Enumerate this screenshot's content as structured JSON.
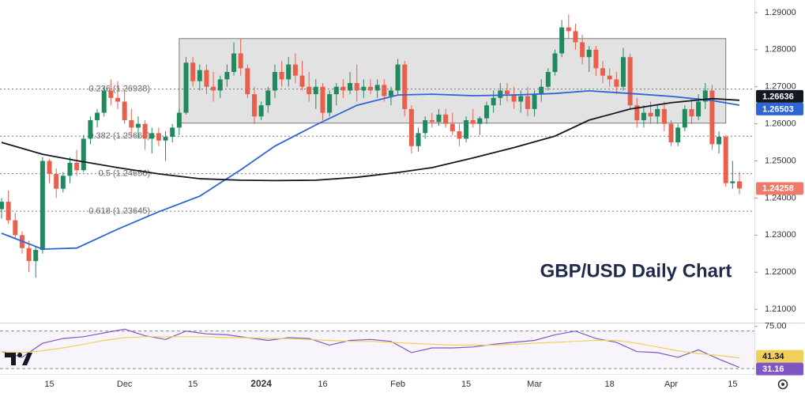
{
  "chart_data": [
    {
      "type": "candlestick",
      "title": "GBP/USD Daily Chart",
      "categories": [
        null,
        null,
        null,
        null,
        null,
        null,
        null,
        "15",
        null,
        null,
        null,
        null,
        null,
        null,
        null,
        null,
        null,
        null,
        "Dec",
        null,
        null,
        null,
        null,
        null,
        null,
        null,
        null,
        null,
        "15",
        null,
        null,
        null,
        null,
        null,
        null,
        null,
        null,
        null,
        "2024",
        null,
        null,
        null,
        null,
        null,
        null,
        null,
        null,
        "16",
        null,
        null,
        null,
        null,
        null,
        null,
        null,
        null,
        null,
        null,
        "Feb",
        null,
        null,
        null,
        null,
        null,
        null,
        null,
        null,
        null,
        "15",
        null,
        null,
        null,
        null,
        null,
        null,
        null,
        null,
        null,
        "Mar",
        null,
        null,
        null,
        null,
        null,
        null,
        null,
        null,
        null,
        null,
        "18",
        null,
        null,
        null,
        null,
        null,
        null,
        null,
        null,
        "Apr",
        null,
        null,
        null,
        null,
        null,
        null,
        null,
        null,
        "15",
        null
      ],
      "open": [
        1.237,
        1.239,
        1.234,
        1.23,
        1.2265,
        1.223,
        1.226,
        1.25,
        1.2465,
        1.2425,
        1.246,
        1.2495,
        1.2475,
        1.256,
        1.261,
        1.263,
        1.269,
        1.267,
        1.266,
        1.261,
        1.259,
        1.26,
        1.256,
        1.2575,
        1.2555,
        1.2565,
        1.259,
        1.263,
        1.2765,
        1.2715,
        1.2745,
        1.27,
        1.269,
        1.272,
        1.274,
        1.279,
        1.275,
        1.268,
        1.262,
        1.265,
        1.269,
        1.274,
        1.272,
        1.276,
        1.273,
        1.27,
        1.268,
        1.27,
        1.263,
        1.268,
        1.27,
        1.269,
        1.271,
        1.269,
        1.27,
        1.269,
        1.2705,
        1.2675,
        1.269,
        1.276,
        1.264,
        1.254,
        1.2575,
        1.261,
        1.2605,
        1.2625,
        1.26,
        1.258,
        1.256,
        1.261,
        1.26,
        1.2615,
        1.265,
        1.267,
        1.269,
        1.268,
        1.266,
        1.2675,
        1.264,
        1.268,
        1.27,
        1.274,
        1.279,
        1.286,
        1.285,
        1.282,
        1.278,
        1.28,
        1.275,
        1.273,
        1.272,
        1.27,
        1.278,
        1.265,
        1.261,
        1.263,
        1.262,
        1.264,
        1.26,
        1.255,
        1.259,
        1.264,
        1.262,
        1.266,
        1.269,
        1.2545,
        1.2565,
        1.244,
        1.2445
      ],
      "high": [
        1.24,
        1.242,
        1.236,
        1.231,
        1.2285,
        1.227,
        1.251,
        1.2505,
        1.248,
        1.247,
        1.251,
        1.253,
        1.257,
        1.262,
        1.264,
        1.27,
        1.272,
        1.2715,
        1.269,
        1.264,
        1.262,
        1.261,
        1.259,
        1.259,
        1.258,
        1.26,
        1.264,
        1.278,
        1.278,
        1.276,
        1.276,
        1.274,
        1.273,
        1.276,
        1.282,
        1.283,
        1.276,
        1.27,
        1.266,
        1.27,
        1.276,
        1.277,
        1.278,
        1.279,
        1.277,
        1.274,
        1.272,
        1.271,
        1.269,
        1.271,
        1.272,
        1.274,
        1.276,
        1.272,
        1.272,
        1.272,
        1.272,
        1.27,
        1.2775,
        1.277,
        1.265,
        1.259,
        1.262,
        1.263,
        1.264,
        1.264,
        1.263,
        1.26,
        1.262,
        1.264,
        1.262,
        1.266,
        1.269,
        1.271,
        1.271,
        1.27,
        1.269,
        1.27,
        1.269,
        1.272,
        1.275,
        1.28,
        1.288,
        1.2895,
        1.287,
        1.284,
        1.281,
        1.281,
        1.277,
        1.275,
        1.274,
        1.2805,
        1.279,
        1.267,
        1.265,
        1.266,
        1.265,
        1.266,
        1.261,
        1.26,
        1.265,
        1.267,
        1.268,
        1.271,
        1.2705,
        1.258,
        1.257,
        1.25,
        1.247
      ],
      "low": [
        1.2345,
        1.233,
        1.229,
        1.225,
        1.22,
        1.2185,
        1.225,
        1.244,
        1.24,
        1.2415,
        1.244,
        1.246,
        1.247,
        1.2545,
        1.259,
        1.262,
        1.265,
        1.264,
        1.26,
        1.257,
        1.256,
        1.253,
        1.252,
        1.254,
        1.25,
        1.255,
        1.257,
        1.2625,
        1.27,
        1.269,
        1.268,
        1.266,
        1.267,
        1.27,
        1.273,
        1.273,
        1.267,
        1.26,
        1.261,
        1.263,
        1.267,
        1.27,
        1.27,
        1.271,
        1.269,
        1.266,
        1.264,
        1.261,
        1.262,
        1.265,
        1.267,
        1.268,
        1.266,
        1.267,
        1.268,
        1.267,
        1.266,
        1.265,
        1.268,
        1.262,
        1.252,
        1.2525,
        1.256,
        1.259,
        1.2595,
        1.259,
        1.257,
        1.254,
        1.255,
        1.259,
        1.257,
        1.26,
        1.263,
        1.265,
        1.266,
        1.264,
        1.263,
        1.262,
        1.262,
        1.266,
        1.269,
        1.273,
        1.278,
        1.283,
        1.28,
        1.276,
        1.274,
        1.273,
        1.271,
        1.27,
        1.268,
        1.269,
        1.264,
        1.259,
        1.259,
        1.26,
        1.26,
        1.258,
        1.254,
        1.254,
        1.258,
        1.26,
        1.261,
        1.264,
        1.253,
        1.252,
        1.243,
        1.2425,
        1.241
      ],
      "close": [
        1.239,
        1.234,
        1.23,
        1.2265,
        1.223,
        1.226,
        1.25,
        1.2465,
        1.2425,
        1.246,
        1.2495,
        1.2475,
        1.256,
        1.261,
        1.263,
        1.269,
        1.267,
        1.266,
        1.261,
        1.259,
        1.26,
        1.256,
        1.2575,
        1.2555,
        1.2565,
        1.259,
        1.263,
        1.2765,
        1.2715,
        1.2745,
        1.27,
        1.269,
        1.272,
        1.274,
        1.279,
        1.275,
        1.268,
        1.262,
        1.265,
        1.269,
        1.274,
        1.272,
        1.276,
        1.273,
        1.27,
        1.268,
        1.27,
        1.263,
        1.268,
        1.27,
        1.269,
        1.271,
        1.269,
        1.27,
        1.269,
        1.2705,
        1.2675,
        1.269,
        1.276,
        1.264,
        1.254,
        1.2575,
        1.261,
        1.2605,
        1.2625,
        1.26,
        1.258,
        1.256,
        1.261,
        1.26,
        1.2615,
        1.265,
        1.267,
        1.269,
        1.268,
        1.266,
        1.2675,
        1.264,
        1.268,
        1.27,
        1.274,
        1.279,
        1.286,
        1.285,
        1.282,
        1.278,
        1.28,
        1.275,
        1.273,
        1.272,
        1.27,
        1.278,
        1.265,
        1.261,
        1.263,
        1.262,
        1.264,
        1.26,
        1.255,
        1.259,
        1.264,
        1.262,
        1.266,
        1.269,
        1.2545,
        1.2565,
        1.244,
        1.2445,
        1.24258
      ],
      "up_color": "#1f8a5e",
      "down_color": "#e8604c",
      "ylim": [
        1.2064,
        1.2934
      ],
      "yticks": [
        {
          "value": 1.21,
          "label": "1.21000"
        },
        {
          "value": 1.22,
          "label": "1.22000"
        },
        {
          "value": 1.23,
          "label": "1.23000"
        },
        {
          "value": 1.24,
          "label": "1.24000"
        },
        {
          "value": 1.25,
          "label": "1.25000"
        },
        {
          "value": 1.26,
          "label": "1.26000"
        },
        {
          "value": 1.27,
          "label": "1.27000"
        },
        {
          "value": 1.28,
          "label": "1.28000"
        },
        {
          "value": 1.29,
          "label": "1.29000"
        }
      ],
      "moving_averages": [
        {
          "color": "#2f64d6",
          "x": [
            0,
            6,
            11,
            17,
            23,
            29,
            35,
            40,
            46,
            52,
            58,
            63,
            69,
            75,
            81,
            86,
            92,
            98,
            104,
            108
          ],
          "values": [
            1.2305,
            1.2262,
            1.2265,
            1.2316,
            1.2363,
            1.2405,
            1.2476,
            1.254,
            1.2597,
            1.265,
            1.2678,
            1.268,
            1.2676,
            1.2678,
            1.2682,
            1.2689,
            1.2682,
            1.2674,
            1.2663,
            1.26503
          ]
        },
        {
          "color": "#131722",
          "x": [
            0,
            6,
            11,
            17,
            23,
            29,
            35,
            40,
            46,
            52,
            58,
            63,
            69,
            75,
            81,
            86,
            92,
            98,
            104,
            108
          ],
          "values": [
            1.255,
            1.2518,
            1.2501,
            1.2482,
            1.2465,
            1.2452,
            1.2448,
            1.2447,
            1.2448,
            1.2456,
            1.2469,
            1.2482,
            1.2508,
            1.2536,
            1.2567,
            1.261,
            1.264,
            1.2657,
            1.2668,
            1.26636
          ]
        }
      ],
      "fibonacci": [
        {
          "value": 1.26938,
          "label": "0.236 (1.26938)"
        },
        {
          "value": 1.25667,
          "label": "0.382 (1.25667)"
        },
        {
          "value": 1.24656,
          "label": "0.5 (1.24656)"
        },
        {
          "value": 1.23645,
          "label": "0.618 (1.23645)"
        }
      ],
      "range_box": {
        "from": 26,
        "to": 106,
        "top": 1.283,
        "bottom": 1.2602
      },
      "price_tags": [
        {
          "value": 1.26636,
          "color": "#131722"
        },
        {
          "value": 1.26503,
          "color": "#2f64d6"
        },
        {
          "value": 1.24258,
          "color": "#f07a68"
        }
      ]
    },
    {
      "type": "line",
      "x": [
        0,
        3,
        6,
        9,
        12,
        15,
        18,
        21,
        24,
        27,
        30,
        33,
        36,
        39,
        42,
        45,
        48,
        51,
        54,
        57,
        60,
        63,
        66,
        69,
        72,
        75,
        78,
        81,
        84,
        87,
        90,
        93,
        96,
        99,
        102,
        105,
        108
      ],
      "series": [
        {
          "color": "#7e57c2",
          "values": [
            48,
            42,
            57,
            62,
            64,
            68,
            72,
            65,
            61,
            70,
            67,
            66,
            63,
            60,
            63,
            62,
            55,
            60,
            61,
            59,
            47,
            52,
            52,
            53,
            56,
            58,
            60,
            66,
            70,
            62,
            58,
            48,
            47,
            42,
            50,
            40,
            31.16
          ]
        },
        {
          "color": "#f2cf5b",
          "values": [
            48,
            47,
            49,
            52,
            56,
            60,
            63,
            64,
            64,
            64,
            64,
            63,
            63,
            62,
            62,
            61,
            60,
            59,
            59,
            58,
            57,
            56,
            55,
            55,
            55,
            56,
            57,
            58,
            59,
            60,
            60,
            57,
            53,
            49,
            46,
            44,
            41.34
          ]
        }
      ],
      "ylim": [
        25,
        79
      ],
      "yticks": [
        {
          "value": 75,
          "label": "75.00"
        }
      ],
      "levels": [
        70,
        30
      ],
      "price_tags": [
        {
          "value": 41.34,
          "color": "#f2cf5b"
        },
        {
          "value": 31.16,
          "color": "#7e57c2"
        }
      ]
    }
  ]
}
